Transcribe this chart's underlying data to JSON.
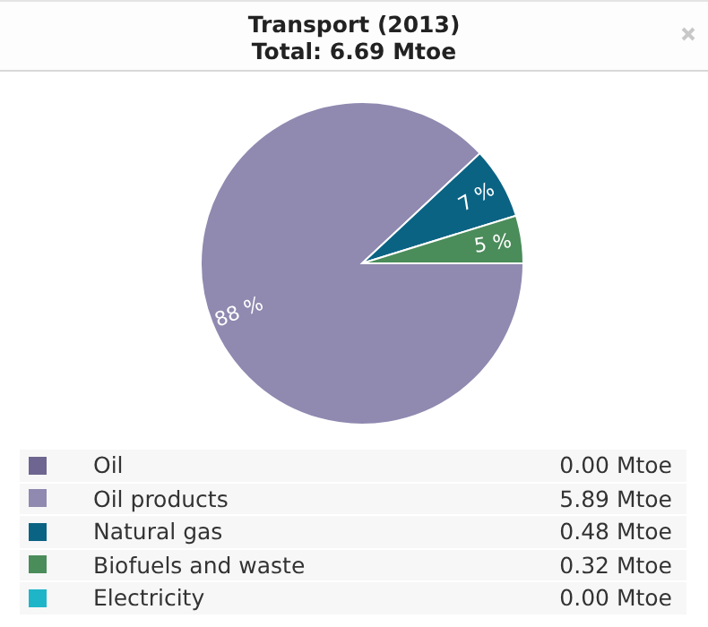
{
  "chart_data": {
    "type": "pie",
    "title": "Transport (2013)",
    "subtitle": "Total: 6.69 Mtoe",
    "categories": [
      "Oil",
      "Oil products",
      "Natural gas",
      "Biofuels and waste",
      "Electricity"
    ],
    "values": [
      0,
      5.89,
      0.48,
      0.32,
      0
    ],
    "colors": [
      "#6e6690",
      "#9089b0",
      "#0b6384",
      "#4a8c5a",
      "#1fb5c9"
    ],
    "value_labels": [
      "0.00 Mtoe",
      "5.89 Mtoe",
      "0.48 Mtoe",
      "0.32 Mtoe",
      "0.00 Mtoe"
    ],
    "annotations": [
      {
        "text": "88 %",
        "x": "Oil products"
      },
      {
        "text": "7 %",
        "x": "Natural gas"
      },
      {
        "text": "5 %",
        "x": "Biofuels and waste"
      }
    ],
    "legend": "bottom"
  }
}
